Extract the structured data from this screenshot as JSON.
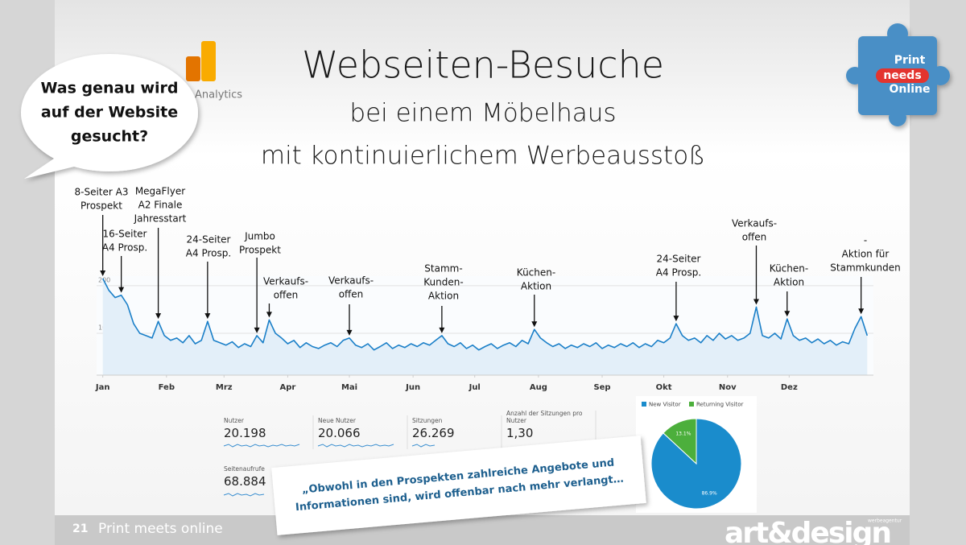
{
  "title": "Webseiten-Besuche",
  "subtitle": [
    "bei einem Möbelhaus",
    "mit kontinuierlichem Werbeausstoß"
  ],
  "speech_bubble": [
    "Was genau wird",
    "auf der Website",
    "gesucht?"
  ],
  "logo_analytics": "Analytics",
  "badge": [
    "Print",
    "needs",
    "Online"
  ],
  "stats": [
    {
      "label": "Nutzer",
      "value": "20.198"
    },
    {
      "label": "Neue Nutzer",
      "value": "20.066"
    },
    {
      "label": "Sitzungen",
      "value": "26.269"
    },
    {
      "label": "Anzahl der Sitzungen pro Nutzer",
      "value": "1,30"
    },
    {
      "label": "Seitenaufrufe",
      "value": "68.884"
    }
  ],
  "quote": [
    "„Obwohl in den Prospekten zahlreiche Angebote und",
    "Informationen sind, wird offenbar nach mehr verlangt…"
  ],
  "footer": {
    "page": "21",
    "text": "Print meets online",
    "logo": "art&design",
    "logo_small": "werbeagentur"
  },
  "chart_data": [
    {
      "type": "line",
      "color": "#1a7fc8",
      "fill": "#e3eff9",
      "grid": true,
      "x": [
        1,
        4,
        7,
        10,
        13,
        16,
        19,
        22,
        25,
        28,
        31,
        34,
        37,
        40,
        43,
        46,
        49,
        52,
        55,
        58,
        61,
        64,
        67,
        70,
        73,
        76,
        79,
        82,
        85,
        88,
        91,
        94,
        97,
        100,
        103,
        106,
        109,
        112,
        115,
        118,
        121,
        124,
        127,
        130,
        133,
        136,
        139,
        142,
        145,
        148,
        151,
        154,
        157,
        160,
        163,
        166,
        169,
        172,
        175,
        178,
        181,
        184,
        187,
        190,
        193,
        196,
        199,
        202,
        205,
        208,
        211,
        214,
        217,
        220,
        223,
        226,
        229,
        232,
        235,
        238,
        241,
        244,
        247,
        250,
        253,
        256,
        259,
        262,
        265,
        268,
        271,
        274,
        277,
        280,
        283,
        286,
        289,
        292,
        295,
        298,
        301,
        304,
        307,
        310,
        313,
        316,
        319,
        322,
        325,
        328,
        331,
        334,
        337,
        340,
        343,
        346,
        349,
        352,
        355,
        358,
        361,
        364,
        367,
        370,
        373
      ],
      "values": [
        215,
        190,
        175,
        180,
        160,
        120,
        100,
        95,
        90,
        125,
        95,
        85,
        90,
        80,
        95,
        78,
        85,
        125,
        85,
        80,
        75,
        82,
        70,
        78,
        72,
        95,
        80,
        128,
        100,
        90,
        78,
        85,
        70,
        80,
        72,
        68,
        75,
        80,
        72,
        85,
        90,
        75,
        70,
        78,
        65,
        72,
        80,
        68,
        75,
        70,
        78,
        72,
        80,
        75,
        85,
        95,
        78,
        72,
        80,
        68,
        75,
        65,
        72,
        78,
        68,
        75,
        80,
        72,
        85,
        78,
        108,
        90,
        80,
        72,
        78,
        68,
        75,
        70,
        78,
        72,
        80,
        68,
        75,
        70,
        78,
        72,
        80,
        70,
        78,
        72,
        85,
        80,
        90,
        120,
        95,
        85,
        90,
        80,
        95,
        85,
        100,
        88,
        95,
        85,
        90,
        100,
        155,
        95,
        90,
        100,
        88,
        130,
        95,
        85,
        90,
        80,
        88,
        78,
        85,
        75,
        82,
        78,
        110,
        135,
        95
      ],
      "xlim": [
        -2,
        376
      ],
      "ylim": [
        12,
        220
      ],
      "yticks": [
        100,
        200
      ],
      "xticks": [
        {
          "value": 1,
          "label": "Jan"
        },
        {
          "value": 32,
          "label": "Feb"
        },
        {
          "value": 60,
          "label": "Mrz"
        },
        {
          "value": 91,
          "label": "Apr"
        },
        {
          "value": 121,
          "label": "Mai"
        },
        {
          "value": 152,
          "label": "Jun"
        },
        {
          "value": 182,
          "label": "Jul"
        },
        {
          "value": 213,
          "label": "Aug"
        },
        {
          "value": 244,
          "label": "Sep"
        },
        {
          "value": 274,
          "label": "Okt"
        },
        {
          "value": 305,
          "label": "Nov"
        },
        {
          "value": 335,
          "label": "Dez"
        }
      ],
      "annotations": [
        {
          "lines": [
            "8-Seiter A3",
            "Prospekt"
          ],
          "x": 1
        },
        {
          "lines": [
            "16-Seiter",
            "A4 Prosp."
          ],
          "x": 10
        },
        {
          "lines": [
            "MegaFlyer",
            "A2 Finale",
            "Jahresstart"
          ],
          "x": 28
        },
        {
          "lines": [
            "24-Seiter",
            "A4 Prosp."
          ],
          "x": 52
        },
        {
          "lines": [
            "Jumbo",
            "Prospekt"
          ],
          "x": 76
        },
        {
          "lines": [
            "Verkaufs-",
            "offen"
          ],
          "x": 82
        },
        {
          "lines": [
            "Verkaufs-",
            "offen"
          ],
          "x": 121
        },
        {
          "lines": [
            "Stamm-",
            "Kunden-",
            "Aktion"
          ],
          "x": 166
        },
        {
          "lines": [
            "Küchen-",
            "Aktion"
          ],
          "x": 211
        },
        {
          "lines": [
            "24-Seiter",
            "A4 Prosp."
          ],
          "x": 280
        },
        {
          "lines": [
            "Verkaufs-",
            "offen"
          ],
          "x": 319
        },
        {
          "lines": [
            "Küchen-",
            "Aktion"
          ],
          "x": 334
        },
        {
          "lines": [
            "-",
            "Aktion für",
            "Stammkunden"
          ],
          "x": 370
        }
      ]
    },
    {
      "type": "pie",
      "categories": [
        "New Visitor",
        "Returning Visitor"
      ],
      "values": [
        86.9,
        13.1
      ],
      "value_labels": [
        "86.9%",
        "13.1%"
      ],
      "colors": [
        "#1a8ccc",
        "#4caf3c"
      ]
    }
  ]
}
